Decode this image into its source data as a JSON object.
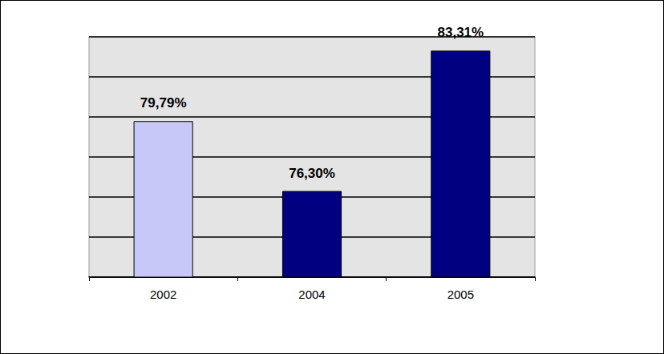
{
  "chart_data": {
    "type": "bar",
    "categories": [
      "2002",
      "2004",
      "2005"
    ],
    "values": [
      79.79,
      76.3,
      83.31
    ],
    "value_labels": [
      "79,79%",
      "76,30%",
      "83,31%"
    ],
    "colors": [
      "#c8c8f8",
      "#000080",
      "#000080"
    ],
    "ylim": [
      72,
      84
    ],
    "yticks": [
      72,
      74,
      76,
      78,
      80,
      82,
      84
    ],
    "grid": true,
    "data_labels": true,
    "tick_labels": "x"
  }
}
